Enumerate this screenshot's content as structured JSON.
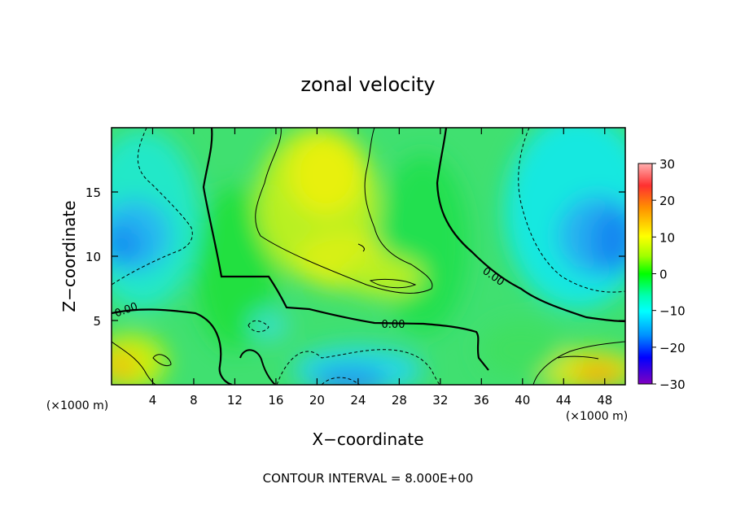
{
  "chart_data": {
    "type": "heatmap",
    "title": "zonal velocity",
    "xlabel": "X−coordinate",
    "ylabel": "Z−coordinate",
    "x_unit": "(×1000 m)",
    "z_unit": "(×1000 m)",
    "xlim": [
      0,
      50
    ],
    "zlim": [
      0,
      20
    ],
    "x_ticks": [
      "4",
      "8",
      "12",
      "16",
      "20",
      "24",
      "28",
      "32",
      "36",
      "40",
      "44",
      "48"
    ],
    "z_ticks": [
      "5",
      "10",
      "15"
    ],
    "colorbar": {
      "range": [
        -30,
        30
      ],
      "ticks": [
        "30",
        "20",
        "10",
        "0",
        "−10",
        "−20",
        "−30"
      ]
    },
    "contour_labels": [
      "0.00",
      "0.00",
      "0.00"
    ],
    "footer": "CONTOUR INTERVAL = 8.000E+00"
  }
}
